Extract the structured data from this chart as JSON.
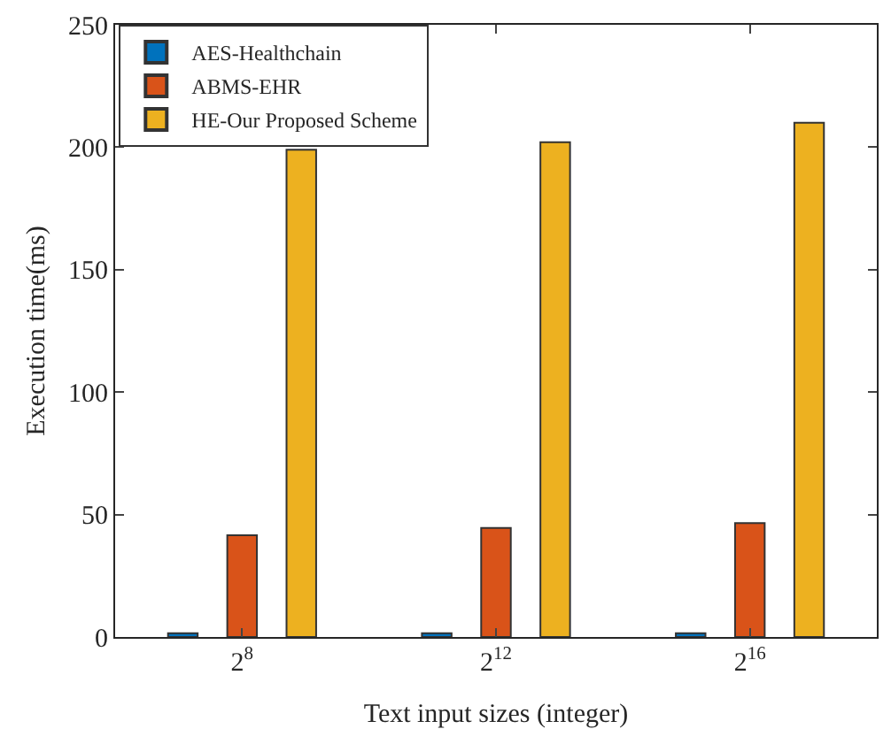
{
  "chart_data": {
    "type": "bar",
    "xlabel": "Text input sizes (integer)",
    "ylabel": "Execution time(ms)",
    "categories": [
      "2$^{8}$",
      "2$^{12}$",
      "2$^{16}$"
    ],
    "series": [
      {
        "name": "AES-Healthchain",
        "color": "#0072bd",
        "values": [
          1.5,
          1.5,
          1.5
        ]
      },
      {
        "name": "ABMS-EHR",
        "color": "#d95319",
        "values": [
          41.5,
          44.5,
          46.5
        ]
      },
      {
        "name": "HE-Our Proposed Scheme",
        "color": "#edb120",
        "values": [
          199,
          202,
          210
        ]
      }
    ],
    "ylim": [
      0,
      250
    ],
    "yticks": [
      0,
      50,
      100,
      150,
      200,
      250
    ],
    "grid": false,
    "legend": "top left"
  }
}
